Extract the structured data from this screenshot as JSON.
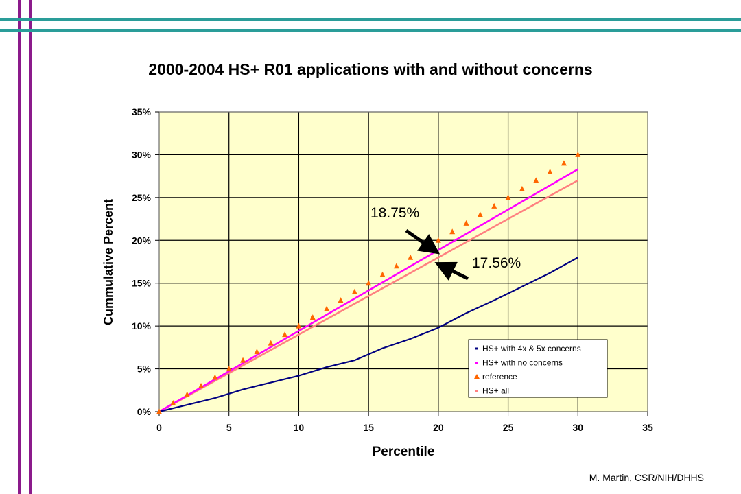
{
  "slide": {
    "title": "2000-2004 HS+ R01 applications with and without concerns",
    "credit": "M. Martin, CSR/NIH/DHHS",
    "colors": {
      "left_bars": "#8b1a8b",
      "top_bars": "#2a9d99"
    }
  },
  "chart_data": {
    "type": "line",
    "title": "2000-2004 HS+ R01 applications with and without concerns",
    "xlabel": "Percentile",
    "ylabel": "Cummulative Percent",
    "xlim": [
      0,
      35
    ],
    "ylim": [
      0,
      35
    ],
    "x_ticks": [
      "0",
      "5",
      "10",
      "15",
      "20",
      "25",
      "30",
      "35"
    ],
    "y_ticks": [
      "0%",
      "5%",
      "10%",
      "15%",
      "20%",
      "25%",
      "30%",
      "35%"
    ],
    "grid": true,
    "plot_background": "#ffffcc",
    "legend_position": "bottom-right",
    "series": [
      {
        "name": "HS+ with 4x & 5x concerns",
        "color": "#000080",
        "marker": "dot",
        "x": [
          0,
          2,
          4,
          6,
          8,
          10,
          12,
          14,
          16,
          18,
          20,
          22,
          24,
          26,
          28,
          30
        ],
        "y": [
          0,
          0.8,
          1.6,
          2.6,
          3.4,
          4.2,
          5.2,
          6.0,
          7.4,
          8.5,
          9.8,
          11.5,
          13.0,
          14.6,
          16.2,
          18.0
        ]
      },
      {
        "name": "HS+ with no concerns",
        "color": "#ff00ff",
        "marker": "dot",
        "x": [
          0,
          30
        ],
        "y": [
          0,
          28.3
        ]
      },
      {
        "name": "reference",
        "color": "#ff6600",
        "marker": "triangle",
        "x": [
          0,
          1,
          2,
          3,
          4,
          5,
          6,
          7,
          8,
          9,
          10,
          11,
          12,
          13,
          14,
          15,
          16,
          17,
          18,
          19,
          20,
          21,
          22,
          23,
          24,
          25,
          26,
          27,
          28,
          29,
          30
        ],
        "y": [
          0,
          1,
          2,
          3,
          4,
          5,
          6,
          7,
          8,
          9,
          10,
          11,
          12,
          13,
          14,
          15,
          16,
          17,
          18,
          19,
          20,
          21,
          22,
          23,
          24,
          25,
          26,
          27,
          28,
          29,
          30
        ]
      },
      {
        "name": "HS+ all",
        "color": "#ff8080",
        "marker": "dot",
        "x": [
          0,
          30
        ],
        "y": [
          0,
          27.0
        ]
      }
    ],
    "annotations": [
      {
        "text": "18.75%",
        "x": 20,
        "y": 18.75
      },
      {
        "text": "17.56%",
        "x": 20,
        "y": 17.56
      }
    ]
  }
}
